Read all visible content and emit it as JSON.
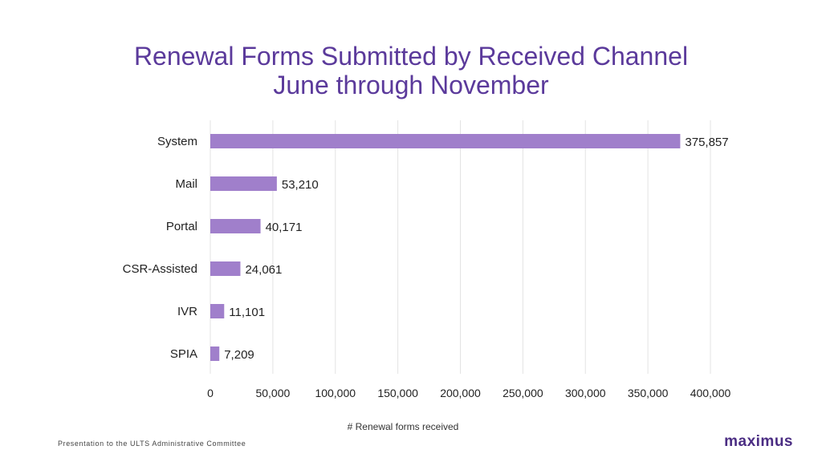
{
  "chart_data": {
    "type": "bar",
    "orientation": "horizontal",
    "title": "Renewal Forms Submitted by Received Channel",
    "subtitle": "June through November",
    "categories": [
      "System",
      "Mail",
      "Portal",
      "CSR-Assisted",
      "IVR",
      "SPIA"
    ],
    "values": [
      375857,
      53210,
      40171,
      24061,
      11101,
      7209
    ],
    "value_labels": [
      "375,857",
      "53,210",
      "40,171",
      "24,061",
      "11,101",
      "7,209"
    ],
    "xlabel": "# Renewal forms received",
    "ylabel": "",
    "xlim": [
      0,
      400000
    ],
    "x_ticks": [
      0,
      50000,
      100000,
      150000,
      200000,
      250000,
      300000,
      350000,
      400000
    ],
    "x_tick_labels": [
      "0",
      "50,000",
      "100,000",
      "150,000",
      "200,000",
      "250,000",
      "300,000",
      "350,000",
      "400,000"
    ],
    "grid": "vertical",
    "legend": "none",
    "bar_color": "#a07fcb"
  },
  "colors": {
    "title": "#5b3a9b",
    "gridline": "#e3e3e3",
    "bar": "#a07fcb"
  },
  "footer": {
    "caption": "Presentation to the ULTS Administrative Committee",
    "logo_text": "maximus"
  }
}
